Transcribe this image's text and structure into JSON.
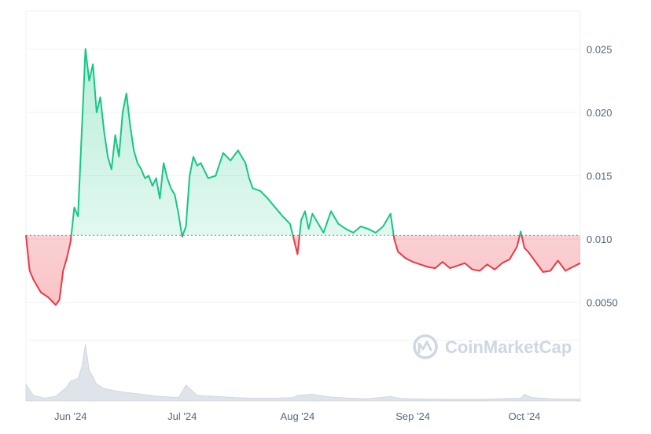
{
  "chart_data": {
    "type": "area",
    "title": "",
    "xlabel": "",
    "ylabel": "",
    "baseline": 0.0103,
    "ylim": [
      0.002,
      0.028
    ],
    "y_ticks": [
      "0.025",
      "0.020",
      "0.015",
      "0.010",
      "0.0050"
    ],
    "y_tick_values": [
      0.025,
      0.02,
      0.015,
      0.01,
      0.005
    ],
    "x_ticks": [
      {
        "label": "Jun '24",
        "date": "2024-06-01"
      },
      {
        "label": "Jul '24",
        "date": "2024-07-01"
      },
      {
        "label": "Aug '24",
        "date": "2024-08-01"
      },
      {
        "label": "Sep '24",
        "date": "2024-09-01"
      },
      {
        "label": "Oct '24",
        "date": "2024-10-01"
      }
    ],
    "x_range": [
      "2024-05-20",
      "2024-10-16"
    ],
    "colors": {
      "above": "#16c784",
      "below": "#ea3943",
      "grid": "#eff2f5",
      "baseline": "#808a9d"
    },
    "watermark": "CoinMarketCap",
    "price_series": {
      "x": [
        "2024-05-20",
        "2024-05-21",
        "2024-05-22",
        "2024-05-23",
        "2024-05-24",
        "2024-05-25",
        "2024-05-26",
        "2024-05-27",
        "2024-05-28",
        "2024-05-29",
        "2024-05-30",
        "2024-05-31",
        "2024-06-01",
        "2024-06-02",
        "2024-06-03",
        "2024-06-04",
        "2024-06-05",
        "2024-06-06",
        "2024-06-07",
        "2024-06-08",
        "2024-06-09",
        "2024-06-10",
        "2024-06-11",
        "2024-06-12",
        "2024-06-13",
        "2024-06-14",
        "2024-06-15",
        "2024-06-16",
        "2024-06-17",
        "2024-06-18",
        "2024-06-19",
        "2024-06-20",
        "2024-06-21",
        "2024-06-22",
        "2024-06-23",
        "2024-06-24",
        "2024-06-25",
        "2024-06-26",
        "2024-06-27",
        "2024-06-28",
        "2024-06-29",
        "2024-06-30",
        "2024-07-01",
        "2024-07-02",
        "2024-07-03",
        "2024-07-04",
        "2024-07-05",
        "2024-07-06",
        "2024-07-08",
        "2024-07-10",
        "2024-07-12",
        "2024-07-14",
        "2024-07-16",
        "2024-07-18",
        "2024-07-19",
        "2024-07-20",
        "2024-07-22",
        "2024-07-24",
        "2024-07-26",
        "2024-07-28",
        "2024-07-30",
        "2024-07-31",
        "2024-08-01",
        "2024-08-02",
        "2024-08-03",
        "2024-08-04",
        "2024-08-05",
        "2024-08-06",
        "2024-08-08",
        "2024-08-10",
        "2024-08-12",
        "2024-08-14",
        "2024-08-16",
        "2024-08-18",
        "2024-08-20",
        "2024-08-22",
        "2024-08-24",
        "2024-08-26",
        "2024-08-27",
        "2024-08-28",
        "2024-08-30",
        "2024-09-01",
        "2024-09-03",
        "2024-09-05",
        "2024-09-07",
        "2024-09-09",
        "2024-09-11",
        "2024-09-13",
        "2024-09-15",
        "2024-09-17",
        "2024-09-19",
        "2024-09-21",
        "2024-09-23",
        "2024-09-25",
        "2024-09-27",
        "2024-09-29",
        "2024-09-30",
        "2024-10-01",
        "2024-10-02",
        "2024-10-04",
        "2024-10-06",
        "2024-10-08",
        "2024-10-10",
        "2024-10-12",
        "2024-10-14",
        "2024-10-16"
      ],
      "y": [
        0.0103,
        0.0075,
        0.0068,
        0.0063,
        0.0058,
        0.0056,
        0.0054,
        0.0051,
        0.0048,
        0.0052,
        0.0075,
        0.0085,
        0.0098,
        0.0125,
        0.0118,
        0.0185,
        0.025,
        0.0225,
        0.0238,
        0.02,
        0.0212,
        0.0185,
        0.0165,
        0.0155,
        0.0182,
        0.0165,
        0.02,
        0.0215,
        0.019,
        0.017,
        0.016,
        0.0155,
        0.0148,
        0.015,
        0.0142,
        0.0148,
        0.0132,
        0.016,
        0.0148,
        0.014,
        0.0135,
        0.012,
        0.0102,
        0.011,
        0.015,
        0.0165,
        0.0158,
        0.016,
        0.0148,
        0.015,
        0.0168,
        0.0162,
        0.017,
        0.016,
        0.0148,
        0.014,
        0.0138,
        0.0132,
        0.0125,
        0.0118,
        0.0112,
        0.01,
        0.0088,
        0.0115,
        0.0122,
        0.0108,
        0.012,
        0.0115,
        0.0105,
        0.0122,
        0.0112,
        0.0108,
        0.0105,
        0.011,
        0.0108,
        0.0105,
        0.011,
        0.012,
        0.01,
        0.009,
        0.0085,
        0.0082,
        0.008,
        0.0078,
        0.0077,
        0.0082,
        0.0077,
        0.0079,
        0.0081,
        0.0076,
        0.0075,
        0.008,
        0.0076,
        0.0081,
        0.0084,
        0.0094,
        0.0106,
        0.0093,
        0.009,
        0.0082,
        0.0074,
        0.0075,
        0.0083,
        0.0075,
        0.0078,
        0.0081
      ]
    },
    "volume_series": {
      "x": [
        "2024-05-20",
        "2024-05-22",
        "2024-05-25",
        "2024-05-28",
        "2024-05-31",
        "2024-06-01",
        "2024-06-03",
        "2024-06-04",
        "2024-06-05",
        "2024-06-06",
        "2024-06-08",
        "2024-06-10",
        "2024-06-13",
        "2024-06-16",
        "2024-06-20",
        "2024-06-25",
        "2024-06-30",
        "2024-07-02",
        "2024-07-05",
        "2024-07-10",
        "2024-07-15",
        "2024-07-20",
        "2024-07-25",
        "2024-07-31",
        "2024-08-01",
        "2024-08-05",
        "2024-08-10",
        "2024-08-15",
        "2024-08-20",
        "2024-08-26",
        "2024-08-28",
        "2024-09-01",
        "2024-09-10",
        "2024-09-20",
        "2024-09-30",
        "2024-10-01",
        "2024-10-03",
        "2024-10-08",
        "2024-10-16"
      ],
      "y": [
        0.3,
        0.1,
        0.05,
        0.08,
        0.25,
        0.35,
        0.4,
        0.6,
        1.0,
        0.55,
        0.3,
        0.22,
        0.18,
        0.15,
        0.12,
        0.08,
        0.06,
        0.28,
        0.1,
        0.08,
        0.06,
        0.05,
        0.05,
        0.06,
        0.1,
        0.12,
        0.07,
        0.05,
        0.04,
        0.08,
        0.05,
        0.04,
        0.03,
        0.03,
        0.05,
        0.12,
        0.06,
        0.04,
        0.03
      ]
    }
  }
}
